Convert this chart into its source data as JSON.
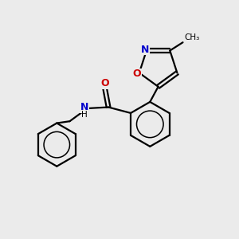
{
  "background_color": "#ebebeb",
  "atom_color_N": "#0000cc",
  "atom_color_O": "#cc0000",
  "atom_color_C": "#000000",
  "bond_color": "#000000",
  "bond_width": 1.6,
  "figsize": [
    3.0,
    3.0
  ],
  "dpi": 100,
  "xlim": [
    0,
    10
  ],
  "ylim": [
    0,
    10
  ]
}
